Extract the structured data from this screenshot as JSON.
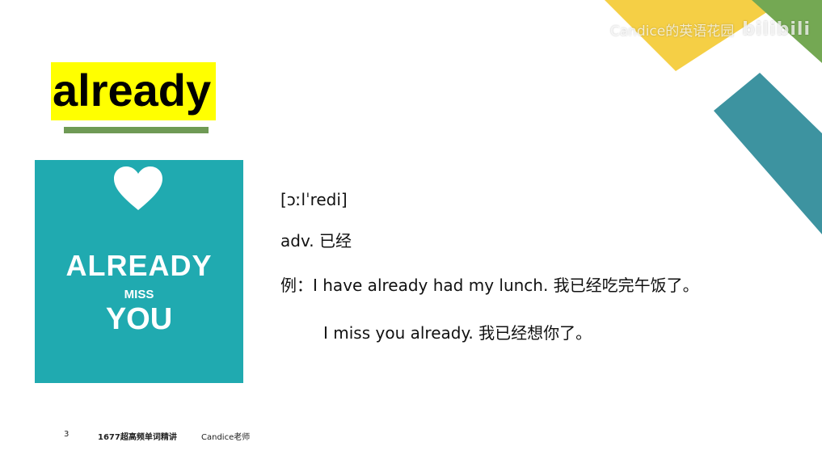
{
  "watermark": {
    "channel": "Candice的英语花园",
    "logo": "bilibili"
  },
  "word": {
    "title": "already"
  },
  "poster": {
    "line1": "ALREADY",
    "line2": "MISS",
    "line3": "YOU"
  },
  "definition": {
    "pronunciation": "[ɔːlˈredi]",
    "part_of_speech": "adv. 已经",
    "example_prefix": "例：",
    "example1": "I have already had my lunch. 我已经吃完午饭了。",
    "example2": "I miss you already. 我已经想你了。"
  },
  "footer": {
    "page": "3",
    "series": "1677超高频单词精讲",
    "teacher": "Candice老师"
  },
  "colors": {
    "yellow": "#f5cf45",
    "green": "#74a853",
    "teal": "#3d93a0",
    "poster": "#20aab0",
    "highlight": "#ffff00"
  }
}
